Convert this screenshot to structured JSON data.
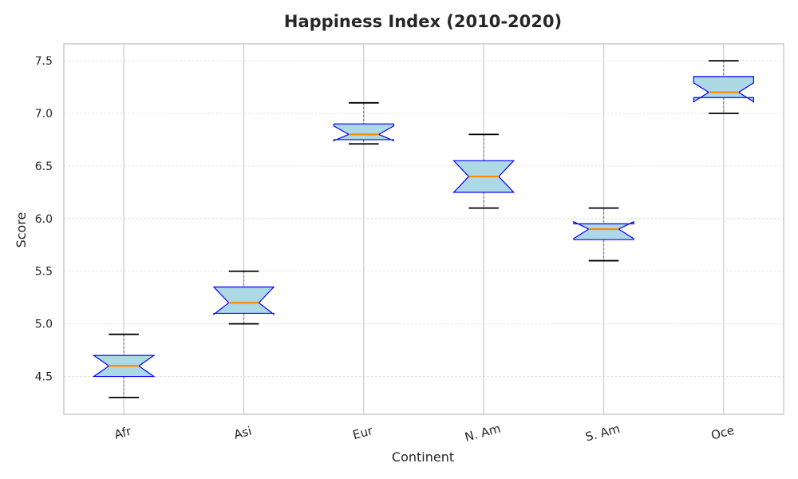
{
  "chart_data": {
    "type": "box",
    "title": "Happiness Index (2010-2020)",
    "xlabel": "Continent",
    "ylabel": "Score",
    "ylim": [
      4.14,
      7.66
    ],
    "yticks": [
      "4.5",
      "5.0",
      "5.5",
      "6.0",
      "6.5",
      "7.0",
      "7.5"
    ],
    "notched": true,
    "grid": true,
    "categories": [
      "Afr",
      "Asi",
      "Eur",
      "N. Am",
      "S. Am",
      "Oce"
    ],
    "boxes": [
      {
        "category": "Afr",
        "whisker_low": 4.3,
        "q1": 4.5,
        "median": 4.6,
        "q3": 4.7,
        "whisker_high": 4.9,
        "notch_low": 4.5,
        "notch_high": 4.7
      },
      {
        "category": "Asi",
        "whisker_low": 5.0,
        "q1": 5.1,
        "median": 5.2,
        "q3": 5.35,
        "whisker_high": 5.5,
        "notch_low": 5.09,
        "notch_high": 5.35
      },
      {
        "category": "Eur",
        "whisker_low": 6.71,
        "q1": 6.75,
        "median": 6.8,
        "q3": 6.9,
        "whisker_high": 7.1,
        "notch_low": 6.74,
        "notch_high": 6.88
      },
      {
        "category": "N. Am",
        "whisker_low": 6.1,
        "q1": 6.25,
        "median": 6.4,
        "q3": 6.55,
        "whisker_high": 6.8,
        "notch_low": 6.25,
        "notch_high": 6.55
      },
      {
        "category": "S. Am",
        "whisker_low": 5.6,
        "q1": 5.8,
        "median": 5.9,
        "q3": 5.95,
        "whisker_high": 6.1,
        "notch_low": 5.81,
        "notch_high": 5.97
      },
      {
        "category": "Oce",
        "whisker_low": 7.0,
        "q1": 7.15,
        "median": 7.2,
        "q3": 7.35,
        "whisker_high": 7.5,
        "notch_low": 7.11,
        "notch_high": 7.29
      }
    ],
    "colors": {
      "box_fill": "#add8e6",
      "box_edge": "#0000ff",
      "median": "#ff8c00",
      "whisker": "#808080",
      "cap": "#000000",
      "grid": "#dddddd",
      "vgrid": "#cccccc",
      "frame": "#cccccc"
    }
  }
}
